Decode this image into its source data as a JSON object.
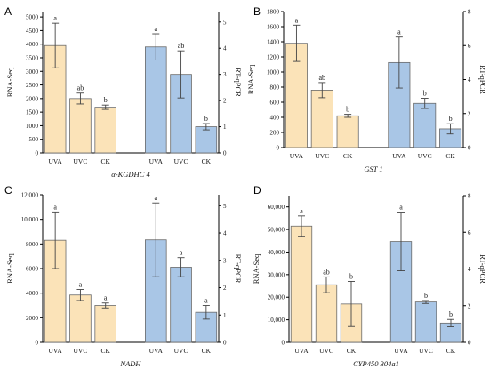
{
  "chart_data": [
    {
      "type": "bar",
      "panel_label": "A",
      "title": "α-KGDHC 4",
      "left_axis_label": "RNA-Seq",
      "right_axis_label": "RT-qPCR",
      "left_ylim": [
        0,
        5200
      ],
      "left_ticks": [
        0,
        500,
        1000,
        1500,
        2000,
        2500,
        3000,
        3500,
        4000,
        4500,
        5000
      ],
      "left_tick_labels": [
        "0",
        "500",
        "1000",
        "1500",
        "2000",
        "2500",
        "3000",
        "3500",
        "4000",
        "4500",
        "5000"
      ],
      "right_ylim": [
        0,
        5.4
      ],
      "right_ticks": [
        0,
        1,
        2,
        3,
        4,
        5
      ],
      "right_tick_labels": [
        "0",
        "1",
        "2",
        "3",
        "4",
        "5"
      ],
      "colors": {
        "rnaseq": "#fbe3b8",
        "qpcr": "#a9c6e6"
      },
      "rnaseq": {
        "categories": [
          "UVA",
          "UVC",
          "CK"
        ],
        "values": [
          3950,
          2000,
          1680
        ],
        "errors": [
          820,
          200,
          80
        ],
        "letters": [
          "a",
          "ab",
          "b"
        ]
      },
      "qpcr": {
        "categories": [
          "UVA",
          "UVC",
          "CK"
        ],
        "values": [
          4.05,
          3.0,
          1.0
        ],
        "errors": [
          0.5,
          0.9,
          0.12
        ],
        "letters": [
          "a",
          "ab",
          "b"
        ]
      }
    },
    {
      "type": "bar",
      "panel_label": "B",
      "title": "GST 1",
      "left_axis_label": "RNA-Seq",
      "right_axis_label": "RT-qPCR",
      "left_ylim": [
        0,
        1800
      ],
      "left_ticks": [
        0,
        200,
        400,
        600,
        800,
        1000,
        1200,
        1400,
        1600,
        1800
      ],
      "left_tick_labels": [
        "0",
        "200",
        "400",
        "600",
        "800",
        "1000",
        "1200",
        "1400",
        "1600",
        "1800"
      ],
      "right_ylim": [
        0,
        8
      ],
      "right_ticks": [
        0,
        2,
        4,
        6,
        8
      ],
      "right_tick_labels": [
        "0",
        "2",
        "4",
        "6",
        "8"
      ],
      "colors": {
        "rnaseq": "#fbe3b8",
        "qpcr": "#a9c6e6"
      },
      "rnaseq": {
        "categories": [
          "UVA",
          "UVC",
          "CK"
        ],
        "values": [
          1380,
          760,
          420
        ],
        "errors": [
          240,
          100,
          20
        ],
        "letters": [
          "a",
          "ab",
          "b"
        ]
      },
      "qpcr": {
        "categories": [
          "UVA",
          "UVC",
          "CK"
        ],
        "values": [
          5.0,
          2.6,
          1.1
        ],
        "errors": [
          1.5,
          0.3,
          0.3
        ],
        "letters": [
          "a",
          "b",
          "b"
        ]
      }
    },
    {
      "type": "bar",
      "panel_label": "C",
      "title": "NADH",
      "left_axis_label": "RNA-Seq",
      "right_axis_label": "RT-qPCR",
      "left_ylim": [
        0,
        12000
      ],
      "left_ticks": [
        0,
        2000,
        4000,
        6000,
        8000,
        10000,
        12000
      ],
      "left_tick_labels": [
        "0",
        "2000",
        "4000",
        "6000",
        "8000",
        "10,000",
        "12,000"
      ],
      "right_ylim": [
        0,
        5.4
      ],
      "right_ticks": [
        0,
        1,
        2,
        3,
        4,
        5
      ],
      "right_tick_labels": [
        "0",
        "1",
        "2",
        "3",
        "4",
        "5"
      ],
      "colors": {
        "rnaseq": "#fbe3b8",
        "qpcr": "#a9c6e6"
      },
      "rnaseq": {
        "categories": [
          "UVA",
          "UVC",
          "CK"
        ],
        "values": [
          8300,
          3850,
          3000
        ],
        "errors": [
          2300,
          450,
          200
        ],
        "letters": [
          "a",
          "a",
          "a"
        ]
      },
      "qpcr": {
        "categories": [
          "UVA",
          "UVC",
          "CK"
        ],
        "values": [
          3.75,
          2.75,
          1.1
        ],
        "errors": [
          1.35,
          0.35,
          0.25
        ],
        "letters": [
          "a",
          "a",
          "a"
        ]
      }
    },
    {
      "type": "bar",
      "panel_label": "D",
      "title": "CYP450 304a1",
      "left_axis_label": "RNA-Seq",
      "right_axis_label": "RT-qPCR",
      "left_ylim": [
        0,
        65000
      ],
      "left_ticks": [
        0,
        10000,
        20000,
        30000,
        40000,
        50000,
        60000
      ],
      "left_tick_labels": [
        "0",
        "10,000",
        "20,000",
        "30,000",
        "40,000",
        "50,000",
        "60,000"
      ],
      "right_ylim": [
        0,
        8
      ],
      "right_ticks": [
        0,
        2,
        4,
        6,
        8
      ],
      "right_tick_labels": [
        "0",
        "2",
        "4",
        "6",
        "8"
      ],
      "colors": {
        "rnaseq": "#fbe3b8",
        "qpcr": "#a9c6e6"
      },
      "rnaseq": {
        "categories": [
          "UVA",
          "UVC",
          "CK"
        ],
        "values": [
          51500,
          25500,
          17000
        ],
        "errors": [
          4500,
          3500,
          10000
        ],
        "letters": [
          "a",
          "ab",
          "b"
        ]
      },
      "qpcr": {
        "categories": [
          "UVA",
          "UVC",
          "CK"
        ],
        "values": [
          5.5,
          2.2,
          1.05
        ],
        "errors": [
          1.6,
          0.08,
          0.2
        ],
        "letters": [
          "a",
          "b",
          "b"
        ]
      }
    }
  ]
}
